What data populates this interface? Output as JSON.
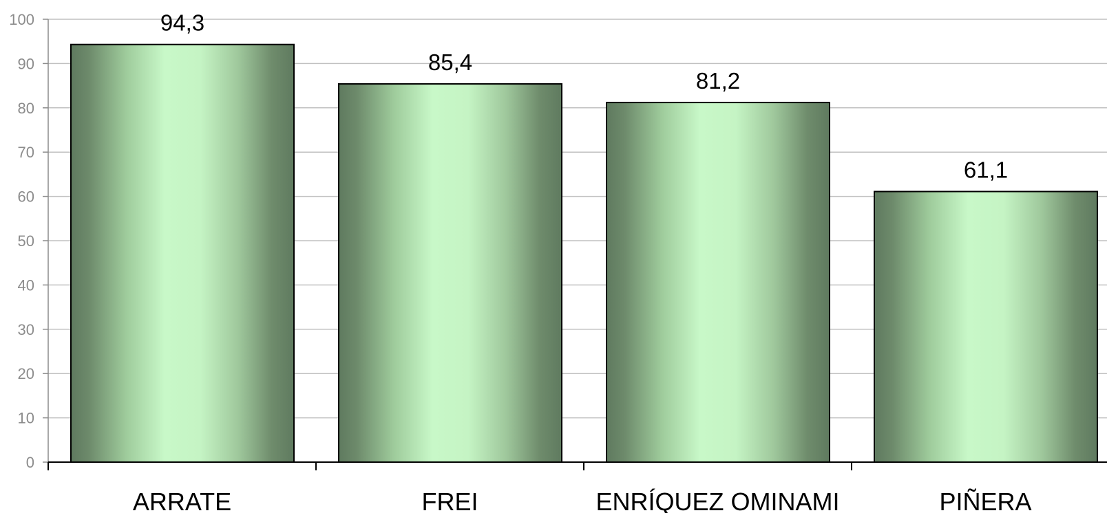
{
  "chart_data": {
    "type": "bar",
    "categories": [
      "ARRATE",
      "FREI",
      "ENRÍQUEZ OMINAMI",
      "PIÑERA"
    ],
    "values": [
      94.3,
      85.4,
      81.2,
      61.1
    ],
    "data_labels": [
      "94,3",
      "85,4",
      "81,2",
      "61,1"
    ],
    "title": "",
    "xlabel": "",
    "ylabel": "",
    "ylim": [
      0,
      100
    ],
    "yticks": [
      0,
      10,
      20,
      30,
      40,
      50,
      60,
      70,
      80,
      90,
      100
    ],
    "grid": true,
    "legend": "none",
    "colors": {
      "bar_dark": "#5f7a5f",
      "bar_light": "#c8f8c8",
      "bar_outline": "#000000",
      "grid": "#c0c0c0",
      "tick_text": "#8c8c8c"
    }
  }
}
